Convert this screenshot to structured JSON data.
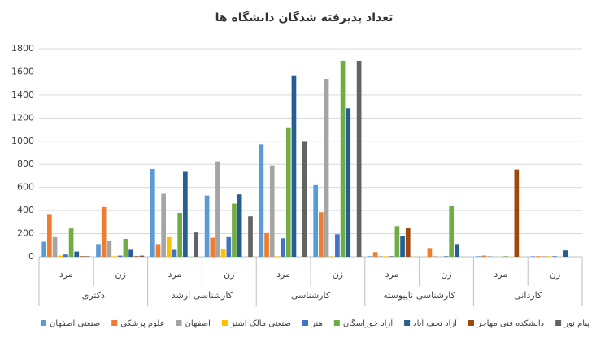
{
  "chart_data": {
    "type": "bar",
    "title": "تعداد پذیرفته شدگان دانشگاه ها",
    "categories": [
      "مرد",
      "زن",
      "مرد",
      "زن",
      "مرد",
      "زن",
      "مرد",
      "زن",
      "مرد",
      "زن"
    ],
    "category_groups": [
      "دکتری",
      "کارشناسی ارشد",
      "کارشناسی",
      "کارشناسی ناپیوسته",
      "کاردانی"
    ],
    "series": [
      {
        "name": "صنعتی اصفهان",
        "color": "#5b9bd5",
        "values": [
          130,
          110,
          760,
          530,
          975,
          620,
          5,
          0,
          5,
          5
        ]
      },
      {
        "name": "علوم پزشکی",
        "color": "#ed7d31",
        "values": [
          370,
          430,
          110,
          165,
          205,
          385,
          40,
          75,
          10,
          5
        ]
      },
      {
        "name": "اصفهان",
        "color": "#a5a5a5",
        "values": [
          170,
          140,
          545,
          825,
          790,
          1540,
          5,
          5,
          5,
          5
        ]
      },
      {
        "name": "صنعتی مالک اشتر",
        "color": "#ffc000",
        "values": [
          10,
          5,
          170,
          70,
          5,
          5,
          5,
          0,
          0,
          5
        ]
      },
      {
        "name": "هنر",
        "color": "#4472c4",
        "values": [
          20,
          10,
          60,
          170,
          160,
          195,
          5,
          5,
          0,
          5
        ]
      },
      {
        "name": "آزاد خوراسگان",
        "color": "#70ad47",
        "values": [
          245,
          155,
          380,
          460,
          1120,
          1695,
          265,
          440,
          5,
          0
        ]
      },
      {
        "name": "آزاد نجف آباد",
        "color": "#255e91",
        "values": [
          45,
          60,
          735,
          540,
          1570,
          1285,
          180,
          110,
          0,
          55
        ]
      },
      {
        "name": "دانشکده فنی مهاجر",
        "color": "#9e480e",
        "values": [
          5,
          5,
          0,
          0,
          0,
          0,
          250,
          0,
          755,
          0
        ]
      },
      {
        "name": "پیام نور",
        "color": "#636363",
        "values": [
          5,
          10,
          210,
          350,
          995,
          1695,
          0,
          0,
          0,
          0
        ]
      }
    ],
    "ylim": [
      0,
      1800
    ],
    "yticks": [
      0,
      200,
      400,
      600,
      800,
      1000,
      1200,
      1400,
      1600,
      1800
    ],
    "grid": true
  }
}
